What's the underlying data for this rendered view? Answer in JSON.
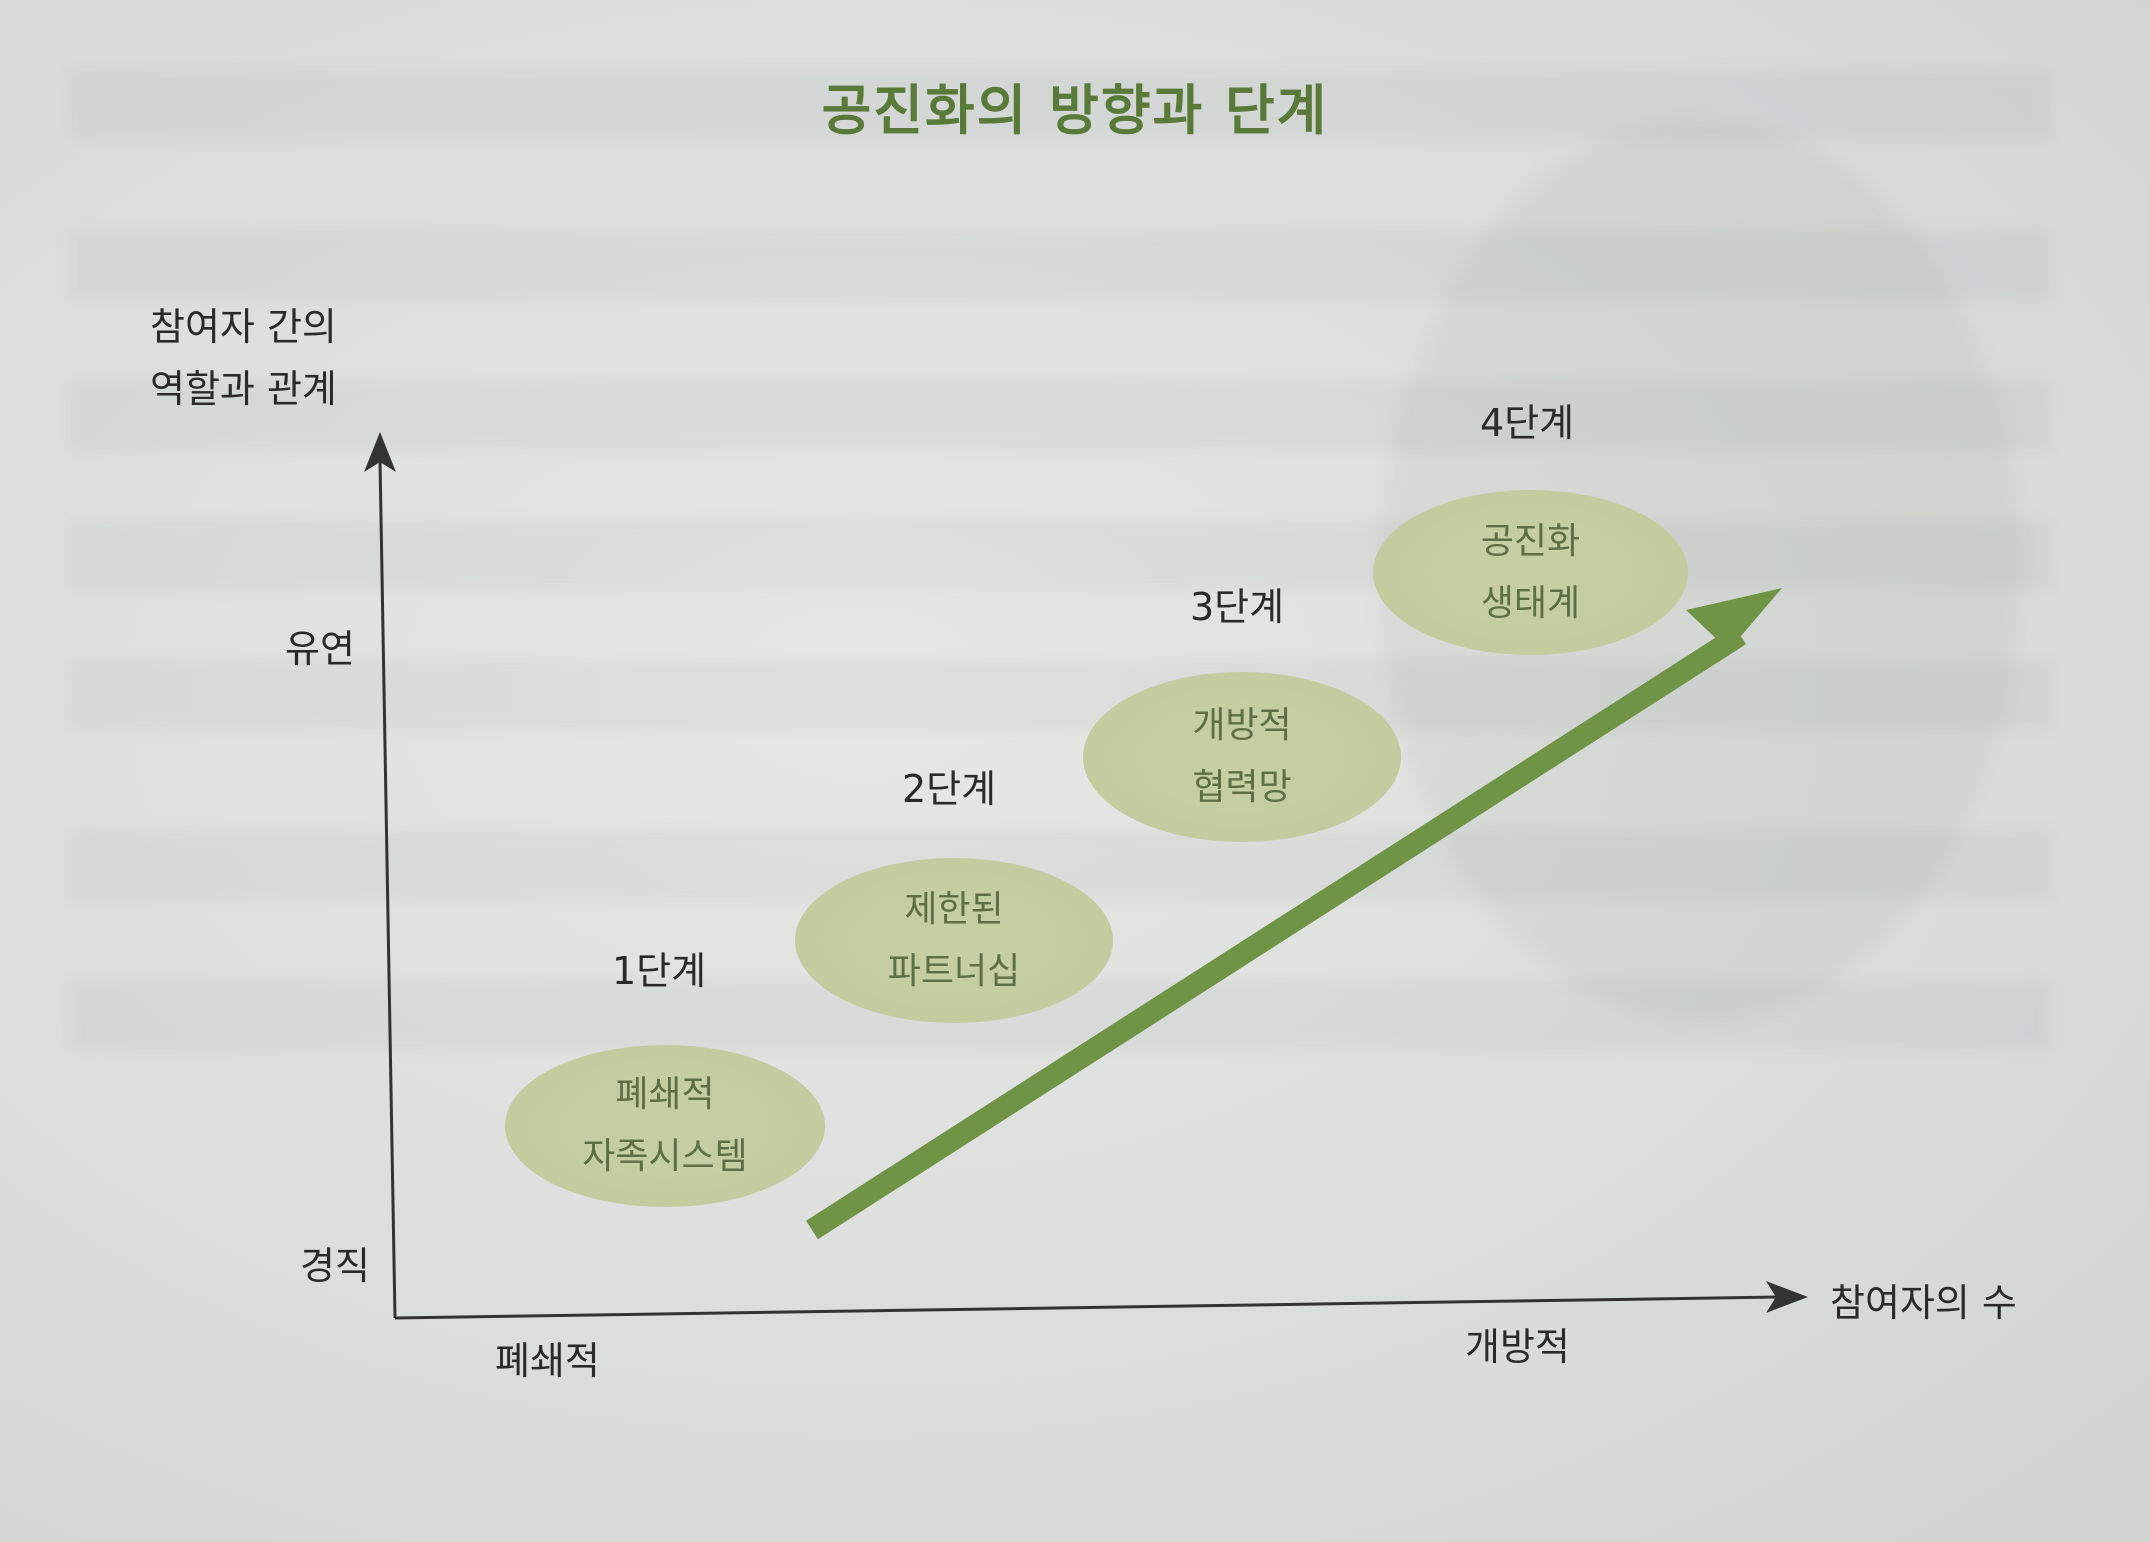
{
  "title": "공진화의 방향과 단계",
  "y_axis": {
    "label_line1": "참여자 간의",
    "label_line2": "역할과 관계",
    "high": "유연",
    "low": "경직"
  },
  "x_axis": {
    "label": "참여자의 수",
    "low": "폐쇄적",
    "high": "개방적"
  },
  "stages": [
    {
      "step": "1단계",
      "line1": "폐쇄적",
      "line2": "자족시스템"
    },
    {
      "step": "2단계",
      "line1": "제한된",
      "line2": "파트너십"
    },
    {
      "step": "3단계",
      "line1": "개방적",
      "line2": "협력망"
    },
    {
      "step": "4단계",
      "line1": "공진화",
      "line2": "생태계"
    }
  ],
  "colors": {
    "arrow": "#6f9446",
    "stage_fill": "#c4cea2",
    "title": "#5a7a3a",
    "axis": "#333333"
  }
}
